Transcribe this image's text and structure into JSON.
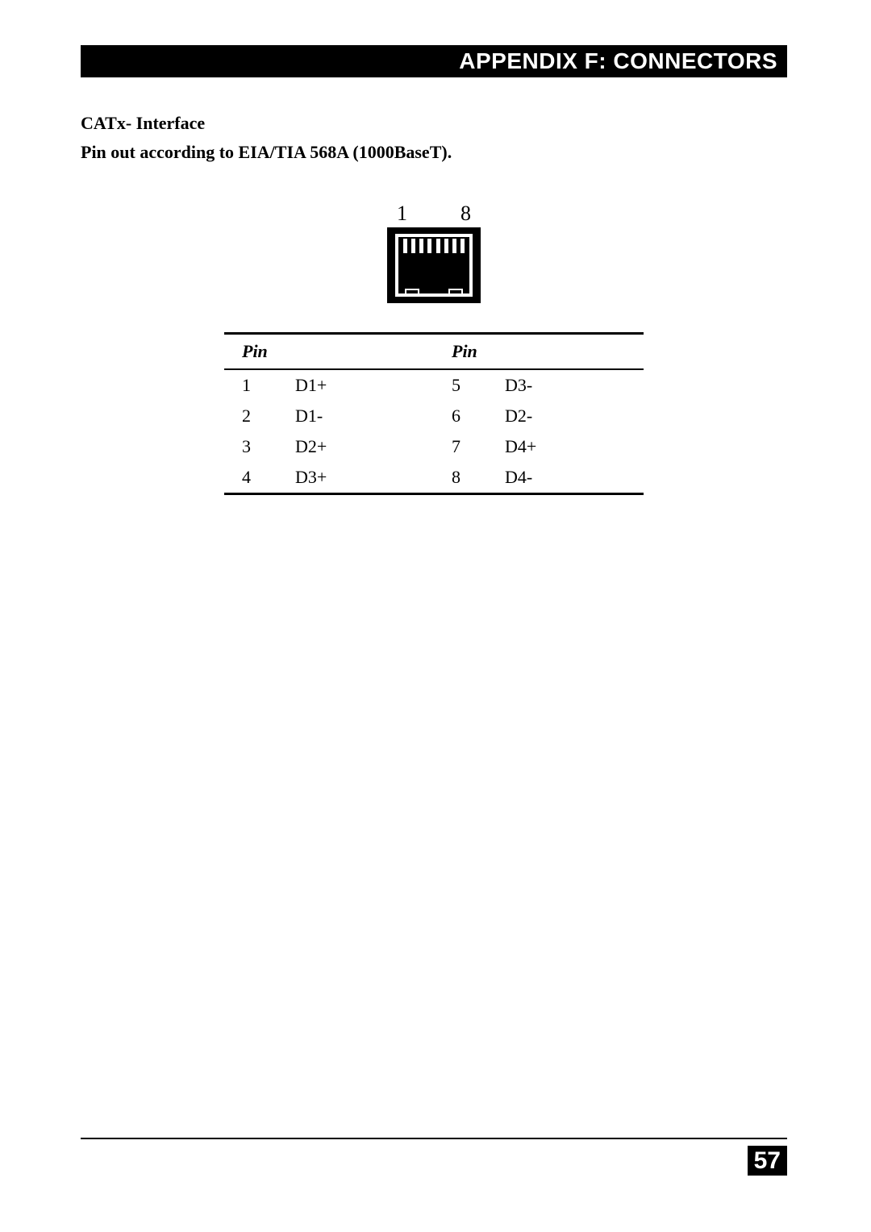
{
  "header": {
    "title": "APPENDIX F: CONNECTORS"
  },
  "section": {
    "heading1": "CATx- Interface",
    "heading2": "Pin out according to EIA/TIA 568A (1000BaseT)."
  },
  "connector_diagram": {
    "type": "rj45-jack",
    "left_label": "1",
    "right_label": "8",
    "pin_count": 8,
    "colors": {
      "jack_fill": "#000000",
      "jack_outline": "#ffffff",
      "pin_tick": "#ffffff",
      "background": "#ffffff"
    }
  },
  "pin_table": {
    "type": "table",
    "columns": [
      "Pin",
      "",
      "Pin",
      ""
    ],
    "header_left": "Pin",
    "header_right": "Pin",
    "rows": [
      {
        "l_num": "1",
        "l_sig": "D1+",
        "r_num": "5",
        "r_sig": "D3-"
      },
      {
        "l_num": "2",
        "l_sig": "D1-",
        "r_num": "6",
        "r_sig": "D2-"
      },
      {
        "l_num": "3",
        "l_sig": "D2+",
        "r_num": "7",
        "r_sig": "D4+"
      },
      {
        "l_num": "4",
        "l_sig": "D3+",
        "r_num": "8",
        "r_sig": "D4-"
      }
    ],
    "border_color": "#000000",
    "font_size_pt": 16
  },
  "footer": {
    "page_number": "57"
  }
}
